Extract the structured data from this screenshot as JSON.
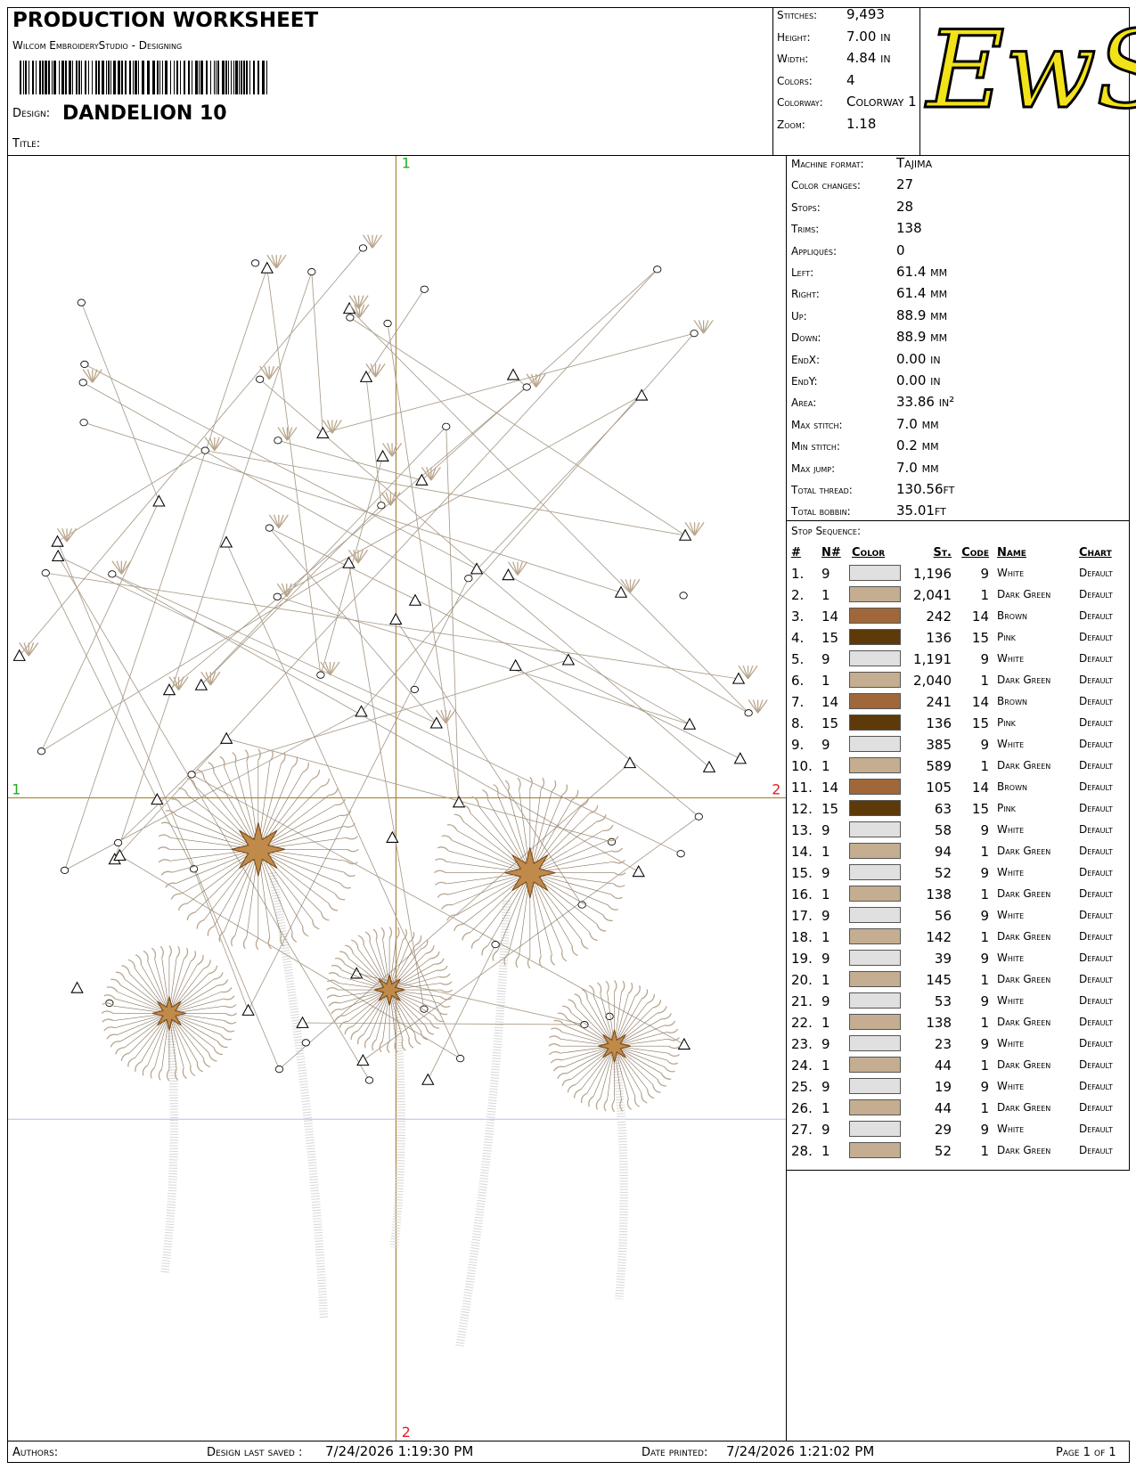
{
  "header": {
    "title": "PRODUCTION WORKSHEET",
    "software": "Wilcom EmbroideryStudio - Designing",
    "design_label": "Design:",
    "design_name": "DANDELION 10",
    "title_label": "Title:"
  },
  "stats": [
    {
      "label": "Stitches:",
      "value": "9,493"
    },
    {
      "label": "Height:",
      "value": "7.00 in"
    },
    {
      "label": "Width:",
      "value": "4.84 in"
    },
    {
      "label": "Colors:",
      "value": "4"
    },
    {
      "label": "Colorway:",
      "value": "Colorway 1"
    },
    {
      "label": "Zoom:",
      "value": "1.18"
    }
  ],
  "logo": "EwS",
  "machine_info": [
    {
      "label": "Machine format:",
      "value": "Tajima"
    },
    {
      "label": "Color changes:",
      "value": "27"
    },
    {
      "label": "Stops:",
      "value": "28"
    },
    {
      "label": "Trims:",
      "value": "138"
    },
    {
      "label": "Appliqués:",
      "value": "0"
    },
    {
      "label": "Left:",
      "value": "61.4 mm"
    },
    {
      "label": "Right:",
      "value": "61.4 mm"
    },
    {
      "label": "Up:",
      "value": "88.9 mm"
    },
    {
      "label": "Down:",
      "value": "88.9 mm"
    },
    {
      "label": "EndX:",
      "value": "0.00 in"
    },
    {
      "label": "EndY:",
      "value": "0.00 in"
    },
    {
      "label": "Area:",
      "value": "33.86 in²"
    },
    {
      "label": "Max stitch:",
      "value": "7.0 mm"
    },
    {
      "label": "Min stitch:",
      "value": "0.2 mm"
    },
    {
      "label": "Max jump:",
      "value": "7.0 mm"
    },
    {
      "label": "Total thread:",
      "value": "130.56ft"
    },
    {
      "label": "Total bobbin:",
      "value": "35.01ft"
    }
  ],
  "stop_sequence": {
    "title": "Stop Sequence:",
    "columns": [
      "#",
      "N#",
      "Color",
      "St.",
      "Code",
      "Name",
      "Chart"
    ],
    "rows": [
      {
        "num": "1.",
        "needle": "9",
        "color": "#e0e0e0",
        "stitches": "1,196",
        "code": "9",
        "name": "White",
        "chart": "Default"
      },
      {
        "num": "2.",
        "needle": "1",
        "color": "#c4ad90",
        "stitches": "2,041",
        "code": "1",
        "name": "Dark Green",
        "chart": "Default"
      },
      {
        "num": "3.",
        "needle": "14",
        "color": "#a0683a",
        "stitches": "242",
        "code": "14",
        "name": "Brown",
        "chart": "Default"
      },
      {
        "num": "4.",
        "needle": "15",
        "color": "#5e3a0a",
        "stitches": "136",
        "code": "15",
        "name": "Pink",
        "chart": "Default"
      },
      {
        "num": "5.",
        "needle": "9",
        "color": "#e0e0e0",
        "stitches": "1,191",
        "code": "9",
        "name": "White",
        "chart": "Default"
      },
      {
        "num": "6.",
        "needle": "1",
        "color": "#c4ad90",
        "stitches": "2,040",
        "code": "1",
        "name": "Dark Green",
        "chart": "Default"
      },
      {
        "num": "7.",
        "needle": "14",
        "color": "#a0683a",
        "stitches": "241",
        "code": "14",
        "name": "Brown",
        "chart": "Default"
      },
      {
        "num": "8.",
        "needle": "15",
        "color": "#5e3a0a",
        "stitches": "136",
        "code": "15",
        "name": "Pink",
        "chart": "Default"
      },
      {
        "num": "9.",
        "needle": "9",
        "color": "#e0e0e0",
        "stitches": "385",
        "code": "9",
        "name": "White",
        "chart": "Default"
      },
      {
        "num": "10.",
        "needle": "1",
        "color": "#c4ad90",
        "stitches": "589",
        "code": "1",
        "name": "Dark Green",
        "chart": "Default"
      },
      {
        "num": "11.",
        "needle": "14",
        "color": "#a0683a",
        "stitches": "105",
        "code": "14",
        "name": "Brown",
        "chart": "Default"
      },
      {
        "num": "12.",
        "needle": "15",
        "color": "#5e3a0a",
        "stitches": "63",
        "code": "15",
        "name": "Pink",
        "chart": "Default"
      },
      {
        "num": "13.",
        "needle": "9",
        "color": "#e0e0e0",
        "stitches": "58",
        "code": "9",
        "name": "White",
        "chart": "Default"
      },
      {
        "num": "14.",
        "needle": "1",
        "color": "#c4ad90",
        "stitches": "94",
        "code": "1",
        "name": "Dark Green",
        "chart": "Default"
      },
      {
        "num": "15.",
        "needle": "9",
        "color": "#e0e0e0",
        "stitches": "52",
        "code": "9",
        "name": "White",
        "chart": "Default"
      },
      {
        "num": "16.",
        "needle": "1",
        "color": "#c4ad90",
        "stitches": "138",
        "code": "1",
        "name": "Dark Green",
        "chart": "Default"
      },
      {
        "num": "17.",
        "needle": "9",
        "color": "#e0e0e0",
        "stitches": "56",
        "code": "9",
        "name": "White",
        "chart": "Default"
      },
      {
        "num": "18.",
        "needle": "1",
        "color": "#c4ad90",
        "stitches": "142",
        "code": "1",
        "name": "Dark Green",
        "chart": "Default"
      },
      {
        "num": "19.",
        "needle": "9",
        "color": "#e0e0e0",
        "stitches": "39",
        "code": "9",
        "name": "White",
        "chart": "Default"
      },
      {
        "num": "20.",
        "needle": "1",
        "color": "#c4ad90",
        "stitches": "145",
        "code": "1",
        "name": "Dark Green",
        "chart": "Default"
      },
      {
        "num": "21.",
        "needle": "9",
        "color": "#e0e0e0",
        "stitches": "53",
        "code": "9",
        "name": "White",
        "chart": "Default"
      },
      {
        "num": "22.",
        "needle": "1",
        "color": "#c4ad90",
        "stitches": "138",
        "code": "1",
        "name": "Dark Green",
        "chart": "Default"
      },
      {
        "num": "23.",
        "needle": "9",
        "color": "#e0e0e0",
        "stitches": "23",
        "code": "9",
        "name": "White",
        "chart": "Default"
      },
      {
        "num": "24.",
        "needle": "1",
        "color": "#c4ad90",
        "stitches": "44",
        "code": "1",
        "name": "Dark Green",
        "chart": "Default"
      },
      {
        "num": "25.",
        "needle": "9",
        "color": "#e0e0e0",
        "stitches": "19",
        "code": "9",
        "name": "White",
        "chart": "Default"
      },
      {
        "num": "26.",
        "needle": "1",
        "color": "#c4ad90",
        "stitches": "44",
        "code": "1",
        "name": "Dark Green",
        "chart": "Default"
      },
      {
        "num": "27.",
        "needle": "9",
        "color": "#e0e0e0",
        "stitches": "29",
        "code": "9",
        "name": "White",
        "chart": "Default"
      },
      {
        "num": "28.",
        "needle": "1",
        "color": "#c4ad90",
        "stitches": "52",
        "code": "1",
        "name": "Dark Green",
        "chart": "Default"
      }
    ]
  },
  "canvas": {
    "axis_top": "1",
    "axis_left": "1",
    "axis_right": "2",
    "axis_bottom": "2"
  },
  "footer": {
    "authors_label": "Authors:",
    "saved_label": "Design last saved :",
    "saved_value": "7/24/2026 1:19:30 PM",
    "printed_label": "Date printed:",
    "printed_value": "7/24/2026 1:21:02 PM",
    "page": "Page 1 of 1"
  }
}
